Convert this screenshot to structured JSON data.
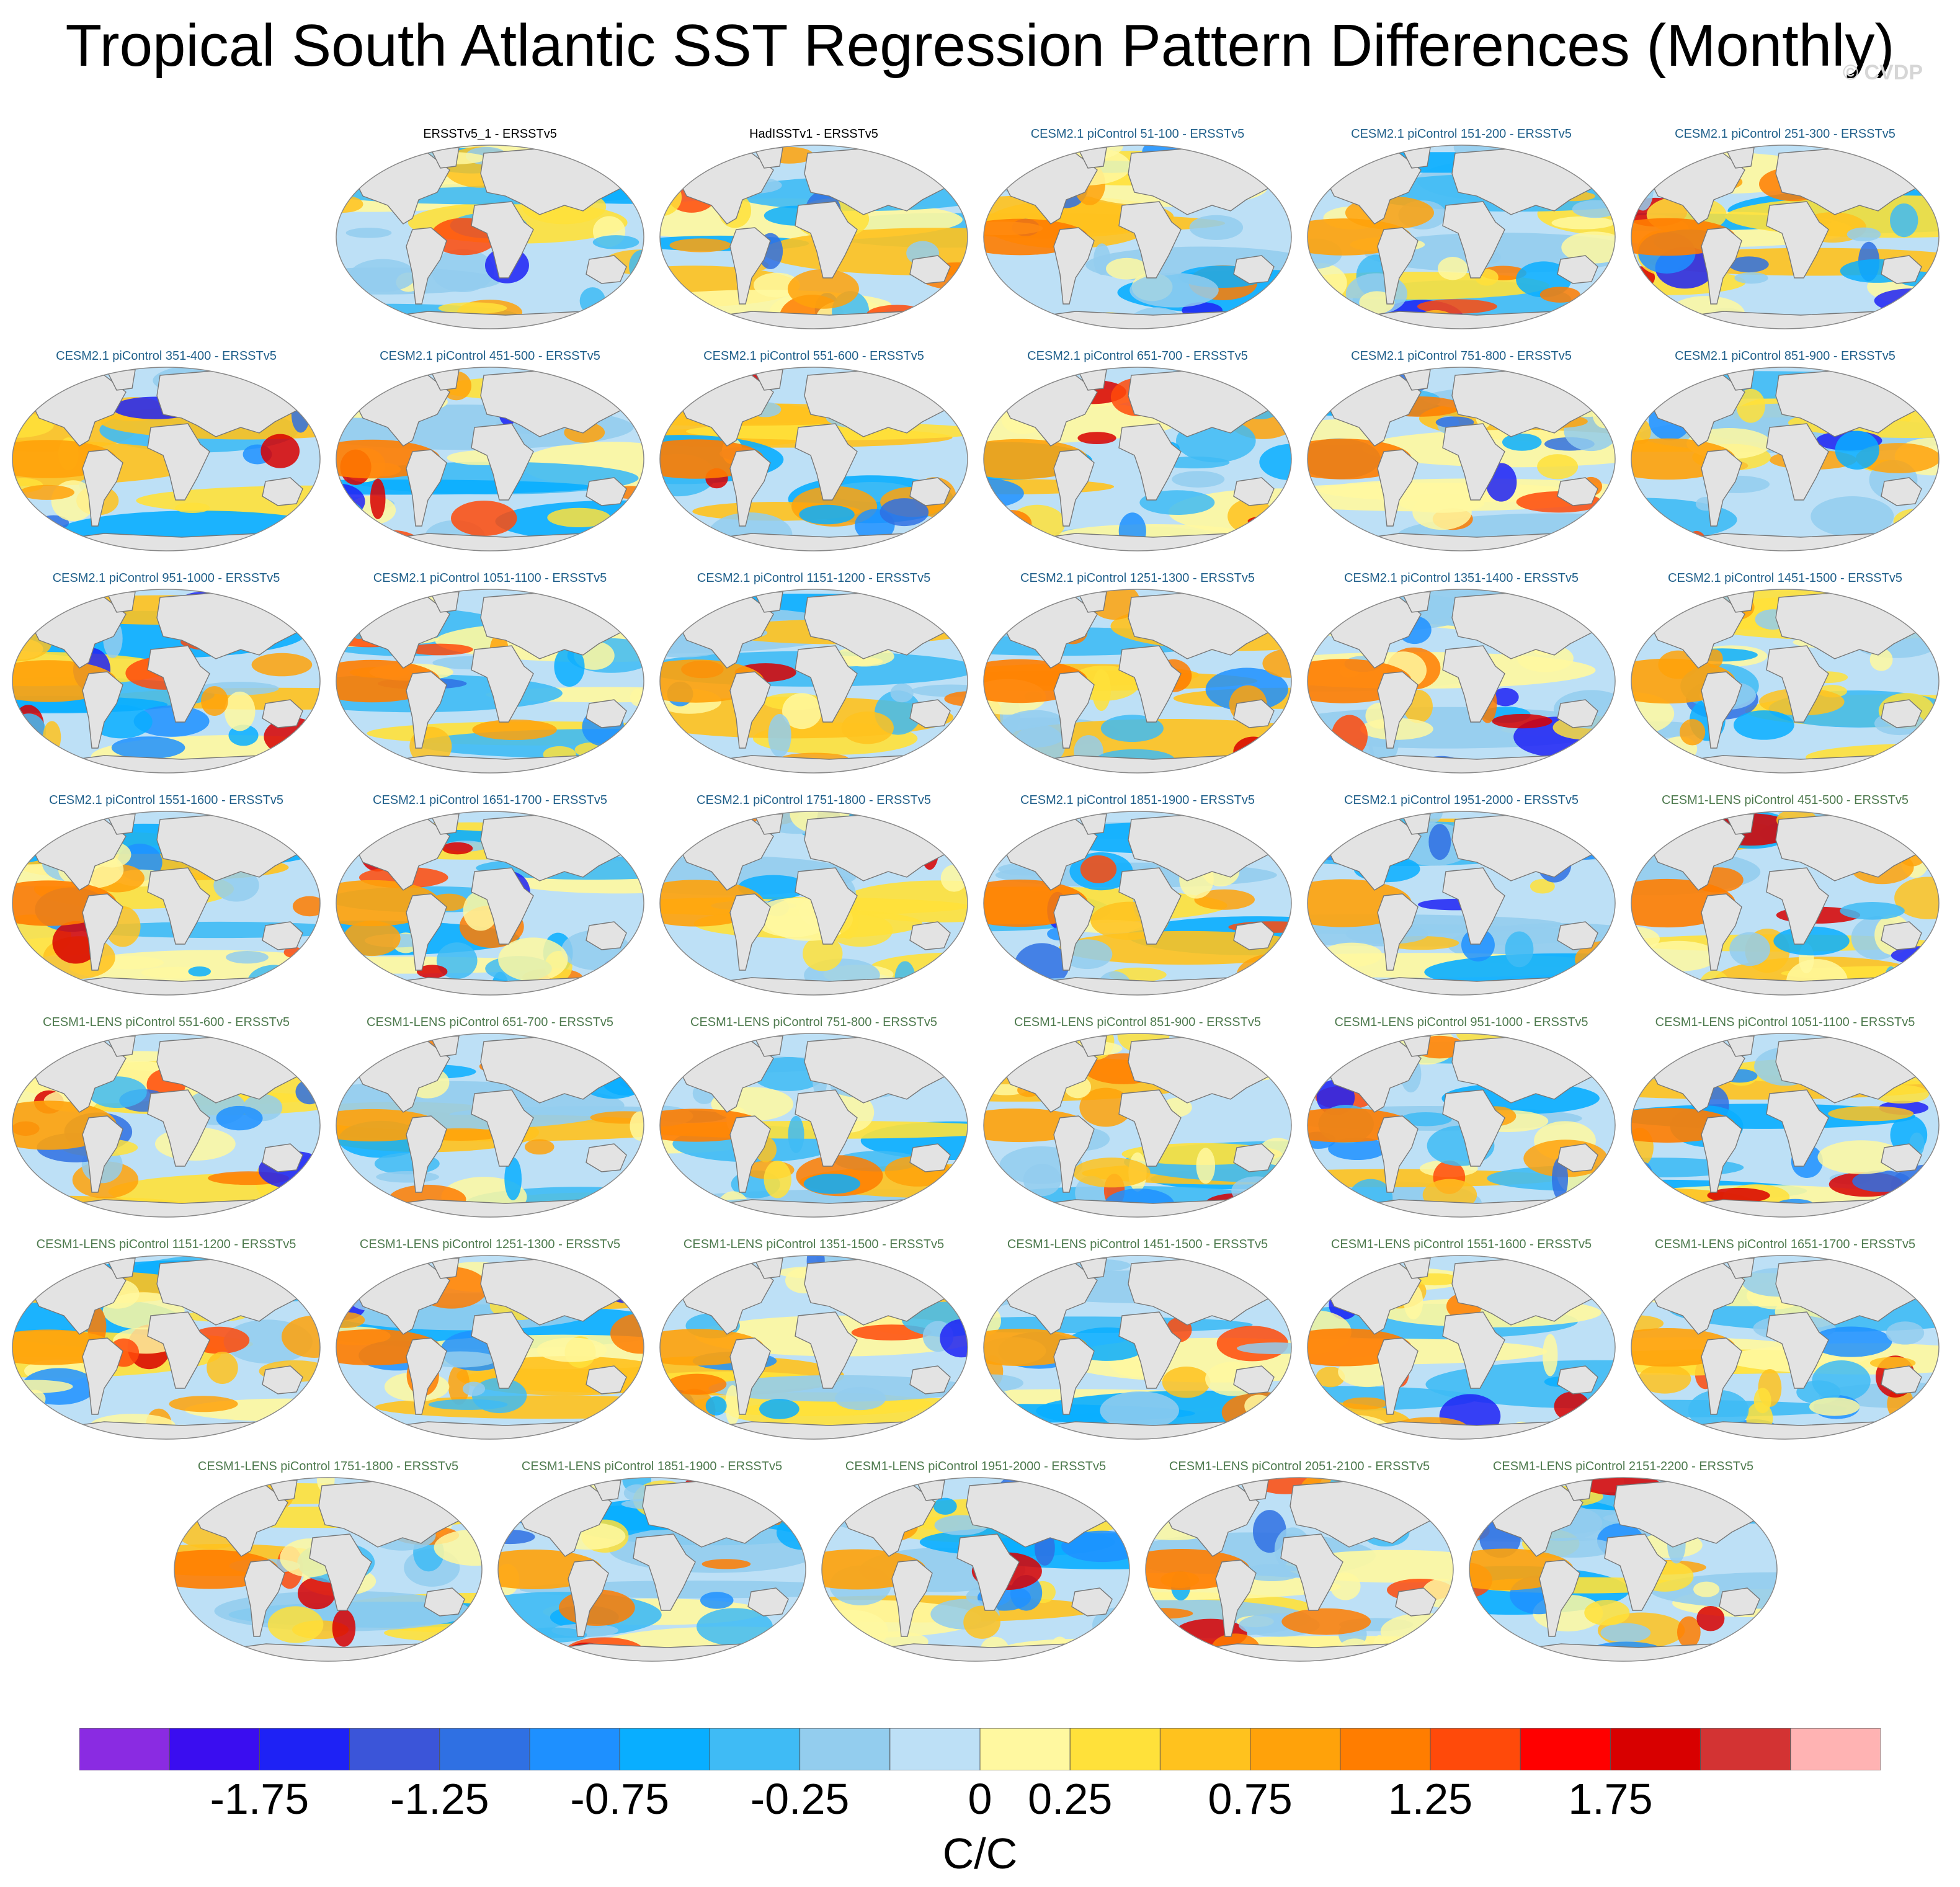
{
  "title": "Tropical South Atlantic SST Regression Pattern Differences (Monthly)",
  "copyright": "© CVDP",
  "panels": [
    {
      "label": "ERSSTv5_1 - ERSSTv5",
      "group": "obs",
      "row": 0,
      "col": 1
    },
    {
      "label": "HadISSTv1 - ERSSTv5",
      "group": "obs",
      "row": 0,
      "col": 2
    },
    {
      "label": "CESM2.1 piControl 51-100 - ERSSTv5",
      "group": "cesm2",
      "row": 0,
      "col": 3
    },
    {
      "label": "CESM2.1 piControl 151-200 - ERSSTv5",
      "group": "cesm2",
      "row": 0,
      "col": 4
    },
    {
      "label": "CESM2.1 piControl 251-300 - ERSSTv5",
      "group": "cesm2",
      "row": 0,
      "col": 5
    },
    {
      "label": "CESM2.1 piControl 351-400 - ERSSTv5",
      "group": "cesm2",
      "row": 1,
      "col": 0
    },
    {
      "label": "CESM2.1 piControl 451-500 - ERSSTv5",
      "group": "cesm2",
      "row": 1,
      "col": 1
    },
    {
      "label": "CESM2.1 piControl 551-600 - ERSSTv5",
      "group": "cesm2",
      "row": 1,
      "col": 2
    },
    {
      "label": "CESM2.1 piControl 651-700 - ERSSTv5",
      "group": "cesm2",
      "row": 1,
      "col": 3
    },
    {
      "label": "CESM2.1 piControl 751-800 - ERSSTv5",
      "group": "cesm2",
      "row": 1,
      "col": 4
    },
    {
      "label": "CESM2.1 piControl 851-900 - ERSSTv5",
      "group": "cesm2",
      "row": 1,
      "col": 5
    },
    {
      "label": "CESM2.1 piControl 951-1000 - ERSSTv5",
      "group": "cesm2",
      "row": 2,
      "col": 0
    },
    {
      "label": "CESM2.1 piControl 1051-1100 - ERSSTv5",
      "group": "cesm2",
      "row": 2,
      "col": 1
    },
    {
      "label": "CESM2.1 piControl 1151-1200 - ERSSTv5",
      "group": "cesm2",
      "row": 2,
      "col": 2
    },
    {
      "label": "CESM2.1 piControl 1251-1300 - ERSSTv5",
      "group": "cesm2",
      "row": 2,
      "col": 3
    },
    {
      "label": "CESM2.1 piControl 1351-1400 - ERSSTv5",
      "group": "cesm2",
      "row": 2,
      "col": 4
    },
    {
      "label": "CESM2.1 piControl 1451-1500 - ERSSTv5",
      "group": "cesm2",
      "row": 2,
      "col": 5
    },
    {
      "label": "CESM2.1 piControl 1551-1600 - ERSSTv5",
      "group": "cesm2",
      "row": 3,
      "col": 0
    },
    {
      "label": "CESM2.1 piControl 1651-1700 - ERSSTv5",
      "group": "cesm2",
      "row": 3,
      "col": 1
    },
    {
      "label": "CESM2.1 piControl 1751-1800 - ERSSTv5",
      "group": "cesm2",
      "row": 3,
      "col": 2
    },
    {
      "label": "CESM2.1 piControl 1851-1900 - ERSSTv5",
      "group": "cesm2",
      "row": 3,
      "col": 3
    },
    {
      "label": "CESM2.1 piControl 1951-2000 - ERSSTv5",
      "group": "cesm2",
      "row": 3,
      "col": 4
    },
    {
      "label": "CESM1-LENS piControl 451-500 - ERSSTv5",
      "group": "cesm1",
      "row": 3,
      "col": 5
    },
    {
      "label": "CESM1-LENS piControl 551-600 - ERSSTv5",
      "group": "cesm1",
      "row": 4,
      "col": 0
    },
    {
      "label": "CESM1-LENS piControl 651-700 - ERSSTv5",
      "group": "cesm1",
      "row": 4,
      "col": 1
    },
    {
      "label": "CESM1-LENS piControl 751-800 - ERSSTv5",
      "group": "cesm1",
      "row": 4,
      "col": 2
    },
    {
      "label": "CESM1-LENS piControl 851-900 - ERSSTv5",
      "group": "cesm1",
      "row": 4,
      "col": 3
    },
    {
      "label": "CESM1-LENS piControl 951-1000 - ERSSTv5",
      "group": "cesm1",
      "row": 4,
      "col": 4
    },
    {
      "label": "CESM1-LENS piControl 1051-1100 - ERSSTv5",
      "group": "cesm1",
      "row": 4,
      "col": 5
    },
    {
      "label": "CESM1-LENS piControl 1151-1200 - ERSSTv5",
      "group": "cesm1",
      "row": 5,
      "col": 0
    },
    {
      "label": "CESM1-LENS piControl 1251-1300 - ERSSTv5",
      "group": "cesm1",
      "row": 5,
      "col": 1
    },
    {
      "label": "CESM1-LENS piControl 1351-1500 - ERSSTv5",
      "group": "cesm1",
      "row": 5,
      "col": 2
    },
    {
      "label": "CESM1-LENS piControl 1451-1500 - ERSSTv5",
      "group": "cesm1",
      "row": 5,
      "col": 3
    },
    {
      "label": "CESM1-LENS piControl 1551-1600 - ERSSTv5",
      "group": "cesm1",
      "row": 5,
      "col": 4
    },
    {
      "label": "CESM1-LENS piControl 1651-1700 - ERSSTv5",
      "group": "cesm1",
      "row": 5,
      "col": 5
    },
    {
      "label": "CESM1-LENS piControl 1751-1800 - ERSSTv5",
      "group": "cesm1",
      "row": 6,
      "col": 0
    },
    {
      "label": "CESM1-LENS piControl 1851-1900 - ERSSTv5",
      "group": "cesm1",
      "row": 6,
      "col": 1
    },
    {
      "label": "CESM1-LENS piControl 1951-2000 - ERSSTv5",
      "group": "cesm1",
      "row": 6,
      "col": 2
    },
    {
      "label": "CESM1-LENS piControl 2051-2100 - ERSSTv5",
      "group": "cesm1",
      "row": 6,
      "col": 3
    },
    {
      "label": "CESM1-LENS piControl 2151-2200 - ERSSTv5",
      "group": "cesm1",
      "row": 6,
      "col": 4
    }
  ],
  "group_colors": {
    "obs": "#000000",
    "cesm2": "#1f5f8a",
    "cesm1": "#4e7a4e"
  },
  "colorbar": {
    "colors": [
      "#8a2be2",
      "#3a0df0",
      "#1e22f5",
      "#3b55d9",
      "#2f70e3",
      "#1e90ff",
      "#09aeff",
      "#3fbbf5",
      "#93cdee",
      "#bde0f6",
      "#fff8a0",
      "#ffe13a",
      "#ffc21e",
      "#ffa20a",
      "#ff7d00",
      "#ff4a0a",
      "#ff0000",
      "#d80000",
      "#d33333",
      "#ffb3b3"
    ],
    "tick_labels": [
      "-1.75",
      "-1.25",
      "-0.75",
      "-0.25",
      "0",
      "0.25",
      "0.75",
      "1.25",
      "1.75"
    ],
    "tick_boundaries": [
      2,
      4,
      6,
      8,
      10,
      11,
      13,
      15,
      17
    ],
    "units": "C/C"
  },
  "map_colors": {
    "land": "#e3e3e3",
    "coast": "#777777",
    "neutral": "#bde0f6",
    "warm": [
      "#fff8a0",
      "#ffe13a",
      "#ffc21e",
      "#ffa20a",
      "#ff7d00",
      "#ff4a0a",
      "#d80000"
    ],
    "cool": [
      "#93cdee",
      "#3fbbf5",
      "#09aeff",
      "#1e90ff",
      "#2f70e3",
      "#1e22f5"
    ]
  }
}
